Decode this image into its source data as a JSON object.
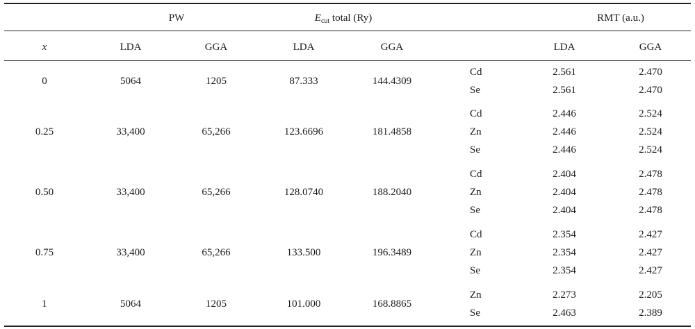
{
  "header": {
    "pw": "PW",
    "ecut_symbol": "E",
    "ecut_sub": "cut",
    "ecut_rest": " total (Ry)",
    "rmt": "RMT (a.u.)",
    "x": "x",
    "lda": "LDA",
    "gga": "GGA"
  },
  "rows": [
    {
      "x": "0",
      "pw_lda": "5064",
      "pw_gga": "1205",
      "ecut_lda": "87.333",
      "ecut_gga": "144.4309",
      "atoms": [
        {
          "el": "Cd",
          "lda": "2.561",
          "gga": "2.470"
        },
        {
          "el": "Se",
          "lda": "2.561",
          "gga": "2.470"
        }
      ]
    },
    {
      "x": "0.25",
      "pw_lda": "33,400",
      "pw_gga": "65,266",
      "ecut_lda": "123.6696",
      "ecut_gga": "181.4858",
      "atoms": [
        {
          "el": "Cd",
          "lda": "2.446",
          "gga": "2.524"
        },
        {
          "el": "Zn",
          "lda": "2.446",
          "gga": "2.524"
        },
        {
          "el": "Se",
          "lda": "2.446",
          "gga": "2.524"
        }
      ]
    },
    {
      "x": "0.50",
      "pw_lda": "33,400",
      "pw_gga": "65,266",
      "ecut_lda": "128.0740",
      "ecut_gga": "188.2040",
      "atoms": [
        {
          "el": "Cd",
          "lda": "2.404",
          "gga": "2.478"
        },
        {
          "el": "Zn",
          "lda": "2.404",
          "gga": "2.478"
        },
        {
          "el": "Se",
          "lda": "2.404",
          "gga": "2.478"
        }
      ]
    },
    {
      "x": "0.75",
      "pw_lda": "33,400",
      "pw_gga": "65,266",
      "ecut_lda": "133.500",
      "ecut_gga": "196.3489",
      "atoms": [
        {
          "el": "Cd",
          "lda": "2.354",
          "gga": "2.427"
        },
        {
          "el": "Zn",
          "lda": "2.354",
          "gga": "2.427"
        },
        {
          "el": "Se",
          "lda": "2.354",
          "gga": "2.427"
        }
      ]
    },
    {
      "x": "1",
      "pw_lda": "5064",
      "pw_gga": "1205",
      "ecut_lda": "101.000",
      "ecut_gga": "168.8865",
      "atoms": [
        {
          "el": "Zn",
          "lda": "2.273",
          "gga": "2.205"
        },
        {
          "el": "Se",
          "lda": "2.463",
          "gga": "2.389"
        }
      ]
    }
  ]
}
